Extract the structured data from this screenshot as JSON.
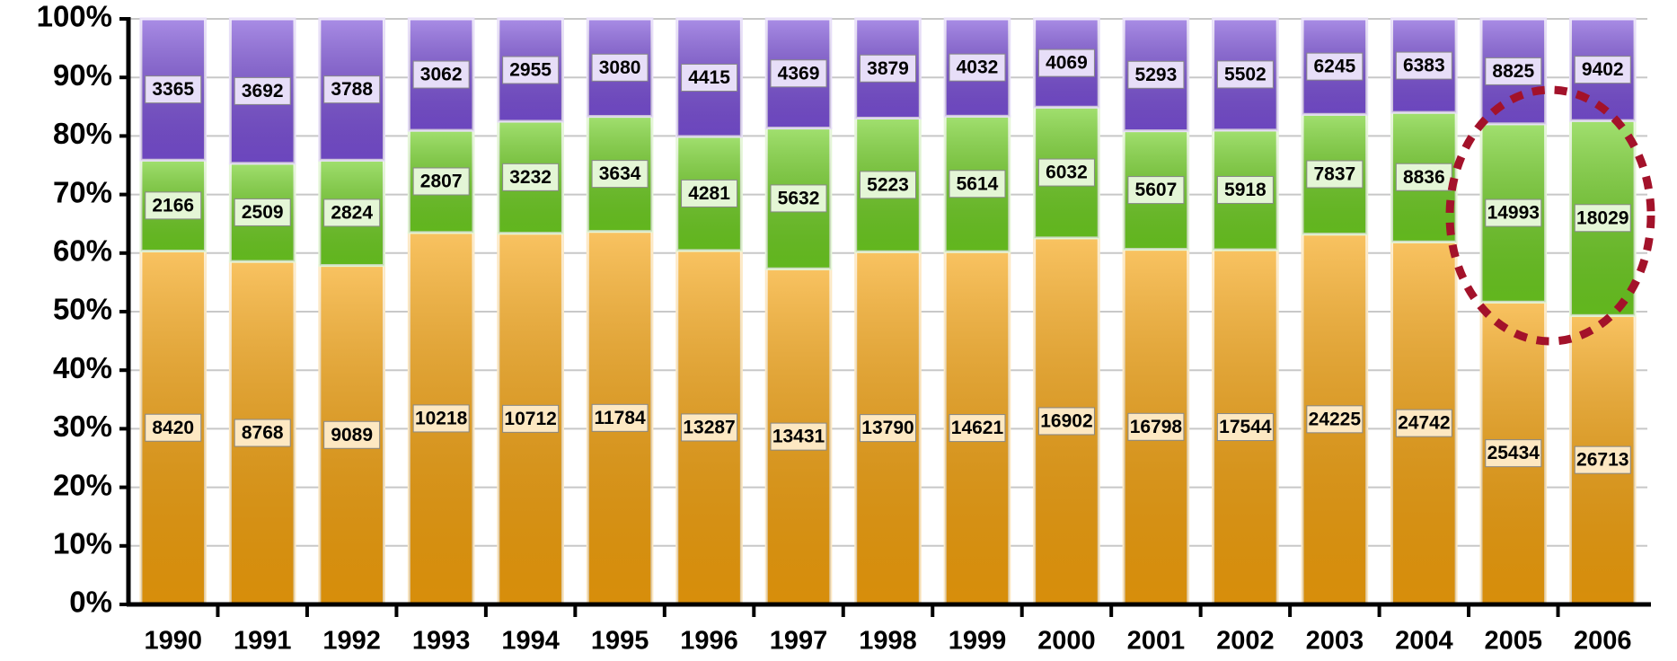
{
  "chart_data": {
    "type": "stacked_bar_percent",
    "categories": [
      "1990",
      "1991",
      "1992",
      "1993",
      "1994",
      "1995",
      "1996",
      "1997",
      "1998",
      "1999",
      "2000",
      "2001",
      "2002",
      "2003",
      "2004",
      "2005",
      "2006"
    ],
    "series": [
      {
        "color": "#f5a20c",
        "values": [
          8420,
          8768,
          9089,
          10218,
          10712,
          11784,
          13287,
          13431,
          13790,
          14621,
          16902,
          16798,
          17544,
          24225,
          24742,
          25434,
          26713
        ]
      },
      {
        "color": "#6fcf22",
        "values": [
          2166,
          2509,
          2824,
          2807,
          3232,
          3634,
          4281,
          5632,
          5223,
          5614,
          6032,
          5607,
          5918,
          7837,
          8836,
          14993,
          18029
        ]
      },
      {
        "color": "#7b50d8",
        "values": [
          3365,
          3692,
          3788,
          3062,
          2955,
          3080,
          4415,
          4369,
          3879,
          4032,
          4069,
          5293,
          5502,
          6245,
          6383,
          8825,
          9402
        ]
      }
    ],
    "ylim": [
      0,
      100
    ],
    "yticks": [
      {
        "value": 0,
        "label": "0%"
      },
      {
        "value": 10,
        "label": "10%"
      },
      {
        "value": 20,
        "label": "20%"
      },
      {
        "value": 30,
        "label": "30%"
      },
      {
        "value": 40,
        "label": "40%"
      },
      {
        "value": 50,
        "label": "50%"
      },
      {
        "value": 60,
        "label": "60%"
      },
      {
        "value": 70,
        "label": "70%"
      },
      {
        "value": 80,
        "label": "80%"
      },
      {
        "value": 90,
        "label": "90%"
      },
      {
        "value": 100,
        "label": "100%"
      }
    ],
    "grid": true
  }
}
